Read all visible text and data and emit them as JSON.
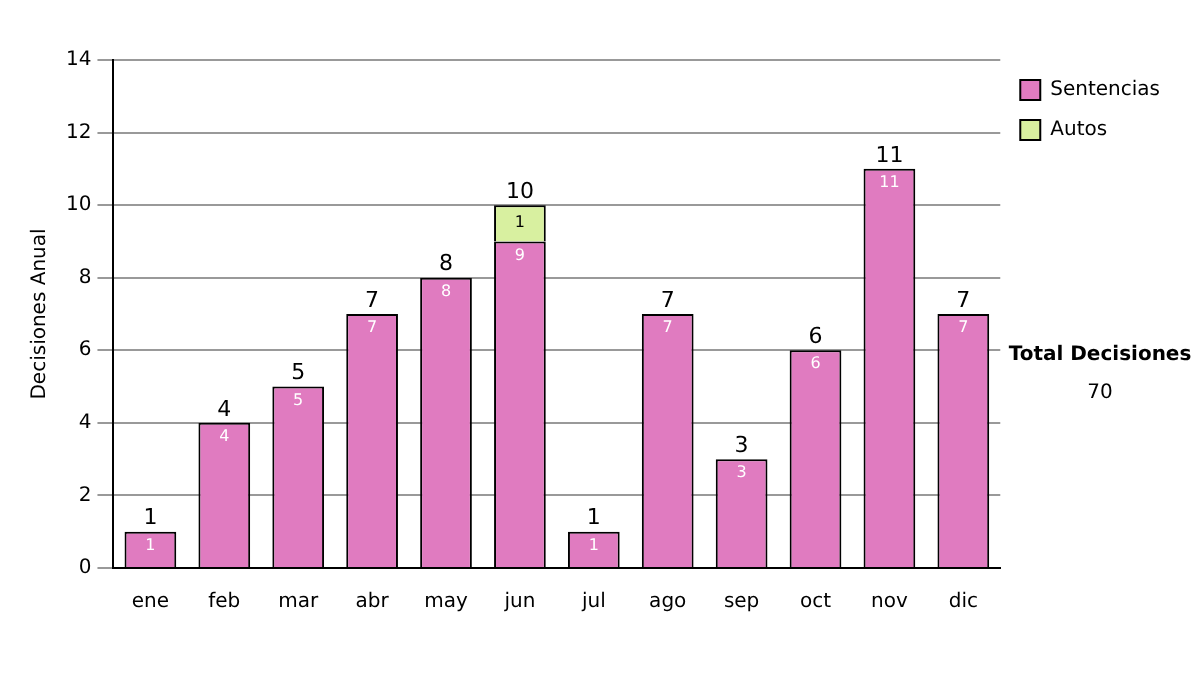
{
  "chart_data": {
    "type": "bar",
    "ylabel": "Decisiones Anual",
    "categories": [
      "ene",
      "feb",
      "mar",
      "abr",
      "may",
      "jun",
      "jul",
      "ago",
      "sep",
      "oct",
      "nov",
      "dic"
    ],
    "stacked": true,
    "series": [
      {
        "name": "Sentencias",
        "color": "#e07bc0",
        "values": [
          1,
          4,
          5,
          7,
          8,
          9,
          1,
          7,
          3,
          6,
          11,
          7
        ],
        "value_labels": [
          "1",
          "4",
          "5",
          "7",
          "8",
          "9",
          "1",
          "7",
          "3",
          "6",
          "11",
          "7"
        ]
      },
      {
        "name": "Autos",
        "color": "#d8f0a0",
        "values": [
          0,
          0,
          0,
          0,
          0,
          1,
          0,
          0,
          0,
          0,
          0,
          0
        ],
        "value_labels": [
          null,
          null,
          null,
          null,
          null,
          "1",
          null,
          null,
          null,
          null,
          null,
          null
        ]
      }
    ],
    "totals": [
      "1",
      "4",
      "5",
      "7",
      "8",
      "10",
      "1",
      "7",
      "3",
      "6",
      "11",
      "7"
    ],
    "ylim": [
      0,
      14
    ],
    "yticks": [
      0,
      2,
      4,
      6,
      8,
      10,
      12,
      14
    ],
    "grid": "y",
    "legend": "right",
    "annotations": [
      "Total Decisiones",
      "70"
    ]
  }
}
